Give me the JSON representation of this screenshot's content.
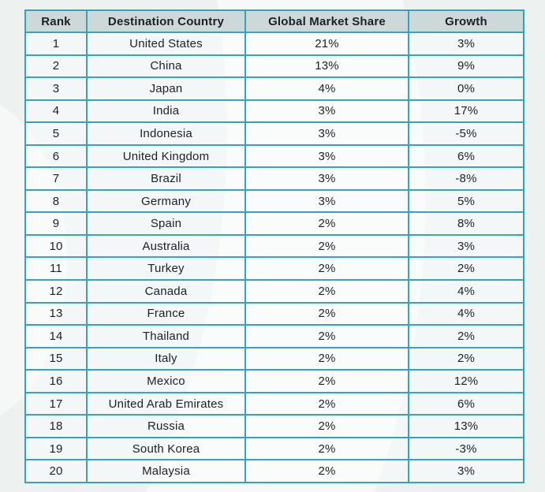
{
  "colors": {
    "page_background": "#edf2f1",
    "table_border": "#35a4ba",
    "header_background": "#cdd9d8",
    "cell_background": "rgba(255,255,255,0.42)",
    "text": "#1d1f27",
    "swoosh": "#ffffff"
  },
  "chart_data": {
    "type": "table",
    "title": "",
    "columns": [
      "Rank",
      "Destination Country",
      "Global Market Share",
      "Growth"
    ],
    "rows": [
      {
        "rank": "1",
        "country": "United States",
        "share": "21%",
        "growth": "3%"
      },
      {
        "rank": "2",
        "country": "China",
        "share": "13%",
        "growth": "9%"
      },
      {
        "rank": "3",
        "country": "Japan",
        "share": "4%",
        "growth": "0%"
      },
      {
        "rank": "4",
        "country": "India",
        "share": "3%",
        "growth": "17%"
      },
      {
        "rank": "5",
        "country": "Indonesia",
        "share": "3%",
        "growth": "-5%"
      },
      {
        "rank": "6",
        "country": "United Kingdom",
        "share": "3%",
        "growth": "6%"
      },
      {
        "rank": "7",
        "country": "Brazil",
        "share": "3%",
        "growth": "-8%"
      },
      {
        "rank": "8",
        "country": "Germany",
        "share": "3%",
        "growth": "5%"
      },
      {
        "rank": "9",
        "country": "Spain",
        "share": "2%",
        "growth": "8%"
      },
      {
        "rank": "10",
        "country": "Australia",
        "share": "2%",
        "growth": "3%"
      },
      {
        "rank": "11",
        "country": "Turkey",
        "share": "2%",
        "growth": "2%"
      },
      {
        "rank": "12",
        "country": "Canada",
        "share": "2%",
        "growth": "4%"
      },
      {
        "rank": "13",
        "country": "France",
        "share": "2%",
        "growth": "4%"
      },
      {
        "rank": "14",
        "country": "Thailand",
        "share": "2%",
        "growth": "2%"
      },
      {
        "rank": "15",
        "country": "Italy",
        "share": "2%",
        "growth": "2%"
      },
      {
        "rank": "16",
        "country": "Mexico",
        "share": "2%",
        "growth": "12%"
      },
      {
        "rank": "17",
        "country": "United Arab Emirates",
        "share": "2%",
        "growth": "6%"
      },
      {
        "rank": "18",
        "country": "Russia",
        "share": "2%",
        "growth": "13%"
      },
      {
        "rank": "19",
        "country": "South Korea",
        "share": "2%",
        "growth": "-3%"
      },
      {
        "rank": "20",
        "country": "Malaysia",
        "share": "2%",
        "growth": "3%"
      }
    ]
  }
}
